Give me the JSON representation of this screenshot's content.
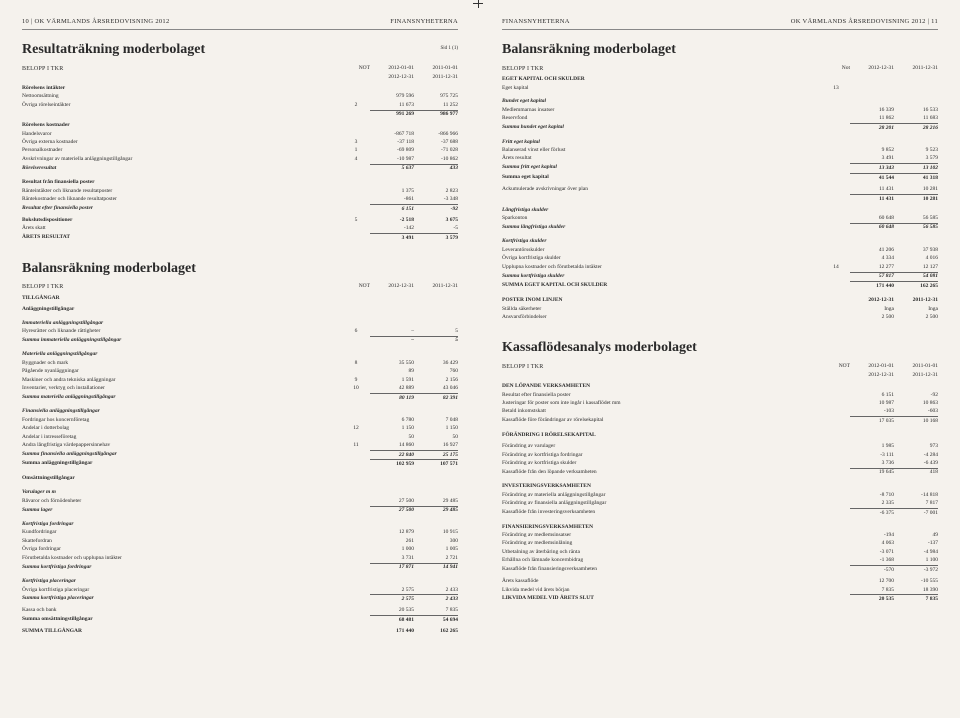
{
  "left": {
    "header_left": "10 | OK VÄRMLANDS ÅRSREDOVISNING 2012",
    "header_right": "FINANSNYHETERNA",
    "title1": "Resultaträkning moderbolaget",
    "sid": "Sid 1 (1)",
    "belopp": "BELOPP I TKR",
    "not": "NOT",
    "col1a": "2012-01-01",
    "col1b": "2012-12-31",
    "col2a": "2011-01-01",
    "col2b": "2011-12-31",
    "resultat_rows": [
      {
        "section": "Rörelsens intäkter"
      },
      {
        "l": "Nettoomsättning",
        "n": "",
        "a": "979 596",
        "b": "975 725"
      },
      {
        "l": "Övriga rörelseintäkter",
        "n": "2",
        "a": "11 673",
        "b": "11 252",
        "ul": true
      },
      {
        "l": "",
        "n": "",
        "a": "991 269",
        "b": "986 977",
        "bold": true
      },
      {
        "section": "Rörelsens kostnader"
      },
      {
        "l": "Handelsvaror",
        "n": "",
        "a": "-867 718",
        "b": "-866 966"
      },
      {
        "l": "Övriga externa kostnader",
        "n": "3",
        "a": "-37 118",
        "b": "-37 688"
      },
      {
        "l": "Personalkostnader",
        "n": "1",
        "a": "-69 809",
        "b": "-71 028"
      },
      {
        "l": "Avskrivningar av materiella anläggningstillgångar",
        "n": "4",
        "a": "-10 987",
        "b": "-10 862",
        "ul": true
      },
      {
        "l": "Rörelseresultat",
        "n": "",
        "a": "5 637",
        "b": "433",
        "bold": true,
        "ital": true
      },
      {
        "gap": true
      },
      {
        "section": "Resultat från finansiella poster"
      },
      {
        "l": "Ränteintäkter och liknande resultatposter",
        "n": "",
        "a": "1 375",
        "b": "2 823"
      },
      {
        "l": "Räntekostnader och liknande resultatposter",
        "n": "",
        "a": "-861",
        "b": "-3 348",
        "ul": true
      },
      {
        "l": "Resultat efter finansiella poster",
        "n": "",
        "a": "6 151",
        "b": "-92",
        "bold": true,
        "ital": true
      },
      {
        "gap": true
      },
      {
        "l": "Bokslutsdispositioner",
        "n": "5",
        "a": "-2 518",
        "b": "3 675",
        "bold": true
      },
      {
        "l": "Årets skatt",
        "n": "",
        "a": "-142",
        "b": "-5",
        "ul": true
      },
      {
        "l": "ÅRETS RESULTAT",
        "n": "",
        "a": "3 491",
        "b": "3 579",
        "bold": true
      }
    ],
    "title2": "Balansräkning moderbolaget",
    "bal_col1": "2012-12-31",
    "bal_col2": "2011-12-31",
    "tillgangar": "TILLGÅNGAR",
    "bal_rows": [
      {
        "section": "Anläggningstillgångar",
        "bold": true
      },
      {
        "gap": true
      },
      {
        "section": "Immateriella anläggningstillgångar",
        "ital": true
      },
      {
        "l": "Hyresrätter och liknande rättigheter",
        "n": "6",
        "a": "–",
        "b": "5",
        "ul": true
      },
      {
        "l": "Summa immateriella anläggningstillgångar",
        "n": "",
        "a": "–",
        "b": "5",
        "bold": true,
        "ital": true
      },
      {
        "gap": true
      },
      {
        "section": "Materiella anläggningstillgångar",
        "ital": true
      },
      {
        "l": "Byggnader och mark",
        "n": "8",
        "a": "35 550",
        "b": "36 429"
      },
      {
        "l": "Pågående nyanläggningar",
        "n": "",
        "a": "89",
        "b": "760"
      },
      {
        "l": "Maskiner och andra tekniska anläggningar",
        "n": "9",
        "a": "1 591",
        "b": "2 156"
      },
      {
        "l": "Inventarier, verktyg och installationer",
        "n": "10",
        "a": "42 889",
        "b": "43 046",
        "ul": true
      },
      {
        "l": "Summa materiella anläggningstillgångar",
        "n": "",
        "a": "80 119",
        "b": "82 391",
        "bold": true,
        "ital": true
      },
      {
        "gap": true
      },
      {
        "section": "Finansiella anläggningstillgångar",
        "ital": true
      },
      {
        "l": "Fordringar hos koncernföretag",
        "n": "",
        "a": "6 780",
        "b": "7 048"
      },
      {
        "l": "Andelar i dotterbolag",
        "n": "12",
        "a": "1 150",
        "b": "1 150"
      },
      {
        "l": "Andelar i intresseföretag",
        "n": "",
        "a": "50",
        "b": "50"
      },
      {
        "l": "Andra långfristiga värdepappersinnehav",
        "n": "11",
        "a": "14 860",
        "b": "16 927",
        "ul": true
      },
      {
        "l": "Summa finansiella anläggningstillgångar",
        "n": "",
        "a": "22 840",
        "b": "25 175",
        "bold": true,
        "ital": true
      },
      {
        "l": "Summa anläggningstillgångar",
        "n": "",
        "a": "102 959",
        "b": "107 571",
        "bold": true,
        "top": true
      },
      {
        "gap": true
      },
      {
        "section": "Omsättningstillgångar",
        "bold": true
      },
      {
        "gap": true
      },
      {
        "section": "Varulager m m",
        "ital": true
      },
      {
        "l": "Råvaror och förnödenheter",
        "n": "",
        "a": "27 500",
        "b": "29 485",
        "ul": true
      },
      {
        "l": "Summa lager",
        "n": "",
        "a": "27 500",
        "b": "29 485",
        "bold": true,
        "ital": true
      },
      {
        "gap": true
      },
      {
        "section": "Kortfristiga fordringar",
        "ital": true
      },
      {
        "l": "Kundfordringar",
        "n": "",
        "a": "12 879",
        "b": "10 915"
      },
      {
        "l": "Skattefordran",
        "n": "",
        "a": "261",
        "b": "300"
      },
      {
        "l": "Övriga fordringar",
        "n": "",
        "a": "1 000",
        "b": "1 005"
      },
      {
        "l": "Förutbetalda kostnader och upplupna intäkter",
        "n": "",
        "a": "3 731",
        "b": "2 721",
        "ul": true
      },
      {
        "l": "Summa kortfristiga fordringar",
        "n": "",
        "a": "17 871",
        "b": "14 941",
        "bold": true,
        "ital": true
      },
      {
        "gap": true
      },
      {
        "section": "Kortfristiga placeringar",
        "ital": true
      },
      {
        "l": "Övriga kortfristiga placeringar",
        "n": "",
        "a": "2 575",
        "b": "2 433",
        "ul": true
      },
      {
        "l": "Summa kortfristiga placeringar",
        "n": "",
        "a": "2 575",
        "b": "2 433",
        "bold": true,
        "ital": true
      },
      {
        "gap": true
      },
      {
        "l": "Kassa och bank",
        "n": "",
        "a": "20 535",
        "b": "7 835",
        "ul": true
      },
      {
        "l": "Summa omsättningstillgångar",
        "n": "",
        "a": "68 481",
        "b": "54 694",
        "bold": true
      },
      {
        "gap": true
      },
      {
        "l": "SUMMA TILLGÅNGAR",
        "n": "",
        "a": "171 440",
        "b": "162 265",
        "bold": true
      }
    ]
  },
  "right": {
    "header_left": "FINANSNYHETERNA",
    "header_right": "OK VÄRMLANDS ÅRSREDOVISNING 2012 | 11",
    "title1": "Balansräkning moderbolaget",
    "belopp": "BELOPP I TKR",
    "not": "Not",
    "col1": "2012-12-31",
    "col2": "2011-12-31",
    "ek_rows": [
      {
        "section": "EGET KAPITAL OCH SKULDER",
        "bold": true
      },
      {
        "l": "Eget kapital",
        "n": "13",
        "a": "",
        "b": ""
      },
      {
        "gap": true
      },
      {
        "section": "Bundet eget kapital",
        "ital": true
      },
      {
        "l": "Medlemmarnas insatser",
        "n": "",
        "a": "16 339",
        "b": "16 533"
      },
      {
        "l": "Reservfond",
        "n": "",
        "a": "11 862",
        "b": "11 683",
        "ul": true
      },
      {
        "l": "Summa bundet eget kapital",
        "n": "",
        "a": "28 201",
        "b": "28 216",
        "bold": true,
        "ital": true
      },
      {
        "gap": true
      },
      {
        "section": "Fritt eget kapital",
        "ital": true
      },
      {
        "l": "Balanserad vinst eller förlust",
        "n": "",
        "a": "9 852",
        "b": "9 523"
      },
      {
        "l": "Årets resultat",
        "n": "",
        "a": "3 491",
        "b": "3 579",
        "ul": true
      },
      {
        "l": "Summa fritt eget kapital",
        "n": "",
        "a": "13 343",
        "b": "13 102",
        "bold": true,
        "ital": true
      },
      {
        "l": "Summa eget kapital",
        "n": "",
        "a": "41 544",
        "b": "41 318",
        "bold": true,
        "top": true
      },
      {
        "gap": true
      },
      {
        "l": "Ackumulerade avskrivningar över plan",
        "n": "",
        "a": "11 431",
        "b": "10 281",
        "ul": true
      },
      {
        "l": "",
        "n": "",
        "a": "11 431",
        "b": "10 281",
        "bold": true
      },
      {
        "section": "Långfristiga skulder",
        "ital": true
      },
      {
        "l": "Sparkonton",
        "n": "",
        "a": "60 648",
        "b": "56 585",
        "ul": true
      },
      {
        "l": "Summa långfristiga skulder",
        "n": "",
        "a": "60 648",
        "b": "56 585",
        "bold": true,
        "ital": true
      },
      {
        "gap": true
      },
      {
        "section": "Kortfristiga skulder",
        "ital": true
      },
      {
        "l": "Leverantörsskulder",
        "n": "",
        "a": "41 206",
        "b": "37 938"
      },
      {
        "l": "Övriga kortfristiga skulder",
        "n": "",
        "a": "4 334",
        "b": "4 016"
      },
      {
        "l": "Upplupna kostnader och förutbetalda intäkter",
        "n": "14",
        "a": "12 277",
        "b": "12 127",
        "ul": true
      },
      {
        "l": "Summa kortfristiga skulder",
        "n": "",
        "a": "57 817",
        "b": "54 081",
        "bold": true,
        "ital": true
      },
      {
        "l": "SUMMA EGET KAPITAL OCH SKULDER",
        "n": "",
        "a": "171 440",
        "b": "162 265",
        "bold": true,
        "top": true
      },
      {
        "gap": true
      },
      {
        "gap": true
      },
      {
        "l": "POSTER INOM LINJEN",
        "n": "",
        "a": "2012-12-31",
        "b": "2011-12-31",
        "bold": true
      },
      {
        "l": "Ställda säkerheter",
        "n": "",
        "a": "Inga",
        "b": "Inga"
      },
      {
        "l": "Ansvarsförbindelser",
        "n": "",
        "a": "2 500",
        "b": "2 500"
      }
    ],
    "title2": "Kassaflödesanalys moderbolaget",
    "kf_col1a": "2012-01-01",
    "kf_col1b": "2012-12-31",
    "kf_col2a": "2011-01-01",
    "kf_col2b": "2011-12-31",
    "kf_rows": [
      {
        "section": "DEN LÖPANDE VERKSAMHETEN",
        "bold": true
      },
      {
        "l": "Resultat efter finansiella poster",
        "n": "",
        "a": "6 151",
        "b": "-92"
      },
      {
        "l": "Justeringar för poster som inte ingår i kassaflödet mm",
        "n": "",
        "a": "10 987",
        "b": "10 863"
      },
      {
        "l": "Betald inkomstskatt",
        "n": "",
        "a": "-103",
        "b": "-603",
        "ul": true
      },
      {
        "l": "Kassaflöde före förändringar av rörelsekapital",
        "n": "",
        "a": "17 035",
        "b": "10 168"
      },
      {
        "gap": true
      },
      {
        "section": "FÖRÄNDRING I RÖRELSEKAPITAL"
      },
      {
        "gap": true
      },
      {
        "l": "Förändring av varulager",
        "n": "",
        "a": "1 985",
        "b": "973"
      },
      {
        "l": "Förändring av kortfristiga fordringar",
        "n": "",
        "a": "-3 111",
        "b": "-4 284"
      },
      {
        "l": "Förändring av kortfristiga skulder",
        "n": "",
        "a": "3 736",
        "b": "-6 439",
        "ul": true
      },
      {
        "l": "Kassaflöde från den löpande verksamheten",
        "n": "",
        "a": "19 645",
        "b": "418"
      },
      {
        "gap": true
      },
      {
        "section": "INVESTERINGSVERKSAMHETEN",
        "bold": true
      },
      {
        "l": "Förändring av materiella anläggningstillgångar",
        "n": "",
        "a": "-8 710",
        "b": "-14 818"
      },
      {
        "l": "Förändring av finansiella anläggningstillgångar",
        "n": "",
        "a": "2 335",
        "b": "7 817",
        "ul": true
      },
      {
        "l": "Kassaflöde från investeringsverksamheten",
        "n": "",
        "a": "-6 375",
        "b": "-7 001"
      },
      {
        "gap": true
      },
      {
        "section": "FINANSIERINGSVERKSAMHETEN",
        "bold": true
      },
      {
        "l": "Förändring av medlemsinsatser",
        "n": "",
        "a": "-194",
        "b": "49"
      },
      {
        "l": "Förändring av medlemsinlåning",
        "n": "",
        "a": "4 063",
        "b": "-137"
      },
      {
        "l": "Utbetalning av återbäring och ränta",
        "n": "",
        "a": "-3 071",
        "b": "-4 984"
      },
      {
        "l": "Erhållna och lämnade koncernbidrag",
        "n": "",
        "a": "-1 368",
        "b": "1 100",
        "ul": true
      },
      {
        "l": "Kassaflöde från finansieringsverksamheten",
        "n": "",
        "a": "-570",
        "b": "-3 972"
      },
      {
        "gap": true
      },
      {
        "l": "Årets kassaflöde",
        "n": "",
        "a": "12 700",
        "b": "-10 555"
      },
      {
        "l": "Likvida medel vid årets början",
        "n": "",
        "a": "7 835",
        "b": "18 390",
        "ul": true
      },
      {
        "l": "LIKVIDA MEDEL VID ÅRETS SLUT",
        "n": "",
        "a": "20 535",
        "b": "7 835",
        "bold": true
      }
    ]
  }
}
